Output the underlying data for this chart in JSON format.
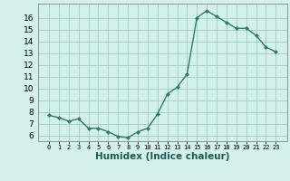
{
  "xlabel": "Humidex (Indice chaleur)",
  "x_values": [
    0,
    1,
    2,
    3,
    4,
    5,
    6,
    7,
    8,
    9,
    10,
    11,
    12,
    13,
    14,
    15,
    16,
    17,
    18,
    19,
    20,
    21,
    22,
    23
  ],
  "y_values": [
    7.7,
    7.5,
    7.2,
    7.4,
    6.6,
    6.6,
    6.3,
    5.9,
    5.8,
    6.3,
    6.6,
    7.8,
    9.5,
    10.1,
    11.2,
    16.0,
    16.6,
    16.1,
    15.6,
    15.1,
    15.1,
    14.5,
    13.5,
    13.1
  ],
  "line_color": "#2d7a6e",
  "marker": "D",
  "marker_size": 2.0,
  "bg_color": "#d4f0eb",
  "grid_color": "#a0ccc5",
  "ylim": [
    5.5,
    17.2
  ],
  "yticks": [
    6,
    7,
    8,
    9,
    10,
    11,
    12,
    13,
    14,
    15,
    16
  ],
  "xticks": [
    0,
    1,
    2,
    3,
    4,
    5,
    6,
    7,
    8,
    9,
    10,
    11,
    12,
    13,
    14,
    15,
    16,
    17,
    18,
    19,
    20,
    21,
    22,
    23
  ],
  "x_tick_fontsize": 5.0,
  "y_tick_fontsize": 6.5,
  "label_fontsize": 7.5,
  "line_width": 1.0,
  "spine_color": "#888888"
}
